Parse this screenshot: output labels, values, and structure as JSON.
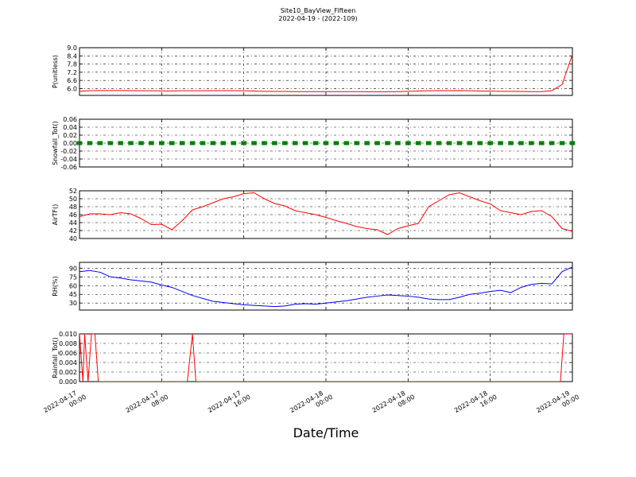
{
  "chart_data": {
    "title": "Site10_BayView_Fifteen",
    "subtitle": "2022-04-19 - (2022-109)",
    "xlabel": "Date/Time",
    "grid": true,
    "xlim": [
      "2022-04-17 00:00",
      "2022-04-19 00:00"
    ],
    "xticks": [
      "2022-04-17 00:00",
      "2022-04-17 08:00",
      "2022-04-17 16:00",
      "2022-04-18 00:00",
      "2022-04-18 08:00",
      "2022-04-18 16:00",
      "2022-04-19 00:00"
    ],
    "x": [
      "2022-04-17 00:00",
      "2022-04-17 01:00",
      "2022-04-17 02:00",
      "2022-04-17 03:00",
      "2022-04-17 04:00",
      "2022-04-17 05:00",
      "2022-04-17 06:00",
      "2022-04-17 07:00",
      "2022-04-17 08:00",
      "2022-04-17 09:00",
      "2022-04-17 10:00",
      "2022-04-17 11:00",
      "2022-04-17 12:00",
      "2022-04-17 13:00",
      "2022-04-17 14:00",
      "2022-04-17 15:00",
      "2022-04-17 16:00",
      "2022-04-17 17:00",
      "2022-04-17 18:00",
      "2022-04-17 19:00",
      "2022-04-17 20:00",
      "2022-04-17 21:00",
      "2022-04-17 22:00",
      "2022-04-17 23:00",
      "2022-04-18 00:00",
      "2022-04-18 01:00",
      "2022-04-18 02:00",
      "2022-04-18 03:00",
      "2022-04-18 04:00",
      "2022-04-18 05:00",
      "2022-04-18 06:00",
      "2022-04-18 07:00",
      "2022-04-18 08:00",
      "2022-04-18 09:00",
      "2022-04-18 10:00",
      "2022-04-18 11:00",
      "2022-04-18 12:00",
      "2022-04-18 13:00",
      "2022-04-18 14:00",
      "2022-04-18 15:00",
      "2022-04-18 16:00",
      "2022-04-18 17:00",
      "2022-04-18 18:00",
      "2022-04-18 19:00",
      "2022-04-18 20:00",
      "2022-04-18 21:00",
      "2022-04-18 22:00",
      "2022-04-18 23:00",
      "2022-04-19 00:00"
    ],
    "panels": [
      {
        "type": "line",
        "ylabel": "P(unitless)",
        "color": "#ff0000",
        "ylim": [
          5.5,
          9.0
        ],
        "yticks": [
          {
            "value": 6.0,
            "label": "6.0"
          },
          6.6,
          7.2,
          7.8,
          8.4,
          {
            "value": 9.0,
            "label": "9.0"
          }
        ],
        "values": [
          5.8,
          5.85,
          5.86,
          5.86,
          5.86,
          5.85,
          5.84,
          5.84,
          5.83,
          5.83,
          5.84,
          5.84,
          5.84,
          5.85,
          5.85,
          5.85,
          5.84,
          5.82,
          5.8,
          5.79,
          5.79,
          5.78,
          5.78,
          5.78,
          5.78,
          5.78,
          5.78,
          5.78,
          5.77,
          5.77,
          5.77,
          5.78,
          5.8,
          5.82,
          5.84,
          5.85,
          5.85,
          5.86,
          5.84,
          5.82,
          5.82,
          5.8,
          5.8,
          5.79,
          5.78,
          5.78,
          5.85,
          6.3,
          8.5
        ]
      },
      {
        "type": "scatter",
        "ylabel": "Snowfall_Tot()",
        "color": "#008000",
        "ylim": [
          -0.06,
          0.06
        ],
        "yticks": [
          -0.06,
          -0.04,
          -0.02,
          {
            "value": 0,
            "label": "0.00"
          },
          0.02,
          0.04,
          0.06
        ],
        "values": [
          0,
          0,
          0,
          0,
          0,
          0,
          0,
          0,
          0,
          0,
          0,
          0,
          0,
          0,
          0,
          0,
          0,
          0,
          0,
          0,
          0,
          0,
          0,
          0,
          0,
          0,
          0,
          0,
          0,
          0,
          0,
          0,
          0,
          0,
          0,
          0,
          0,
          0,
          0,
          0,
          0,
          0,
          0,
          0,
          0,
          0,
          0,
          0,
          0
        ]
      },
      {
        "type": "line",
        "ylabel": "AirTF()",
        "color": "#ff0000",
        "ylim": [
          40,
          52
        ],
        "yticks": [
          40,
          42,
          44,
          46,
          48,
          50,
          52
        ],
        "values": [
          45.5,
          46.2,
          46.2,
          46.0,
          46.5,
          46.2,
          45.0,
          43.5,
          43.6,
          42.2,
          44.5,
          47.2,
          48.0,
          49.0,
          50.0,
          50.5,
          51.3,
          51.5,
          50.0,
          48.8,
          48.2,
          47.0,
          46.5,
          46.0,
          45.3,
          44.5,
          43.8,
          43.0,
          42.5,
          42.2,
          41.0,
          42.5,
          43.2,
          43.8,
          48.0,
          49.5,
          51.0,
          51.5,
          50.5,
          49.5,
          48.7,
          47.0,
          46.5,
          46.0,
          46.8,
          47.0,
          45.5,
          42.5,
          41.8
        ]
      },
      {
        "type": "line",
        "ylabel": "RH(%)",
        "color": "#0000ff",
        "ylim": [
          18,
          100
        ],
        "yticks": [
          30,
          45,
          60,
          75,
          90
        ],
        "values": [
          84,
          86,
          83,
          75,
          73,
          70,
          68,
          66,
          61,
          57,
          50,
          43,
          38,
          33,
          31,
          29,
          27,
          26,
          25,
          24,
          25,
          28,
          29,
          28,
          30,
          32,
          34,
          37,
          40,
          42,
          44,
          43,
          42,
          40,
          37,
          36,
          36,
          40,
          45,
          47,
          50,
          52,
          48,
          57,
          62,
          64,
          63,
          84,
          92
        ]
      },
      {
        "type": "line",
        "ylabel": "Rainfall_Tot()",
        "color": "#ff0000",
        "ylim": [
          0,
          0.01
        ],
        "yticks": [
          {
            "value": 0,
            "label": "0.000"
          },
          0.002,
          0.004,
          0.006,
          0.008,
          {
            "value": 0.01,
            "label": "0.010"
          }
        ],
        "x": [
          "2022-04-17 00:00",
          "2022-04-17 00:20",
          "2022-04-17 00:30",
          "2022-04-17 00:50",
          "2022-04-17 01:10",
          "2022-04-17 01:30",
          "2022-04-17 01:50",
          "2022-04-17 10:30",
          "2022-04-17 11:00",
          "2022-04-17 11:20",
          "2022-04-18 22:50",
          "2022-04-18 23:10",
          "2022-04-19 00:00"
        ],
        "values": [
          0.01,
          0,
          0.01,
          0,
          0.01,
          0.01,
          0,
          0,
          0.01,
          0,
          0,
          0.01,
          0.01
        ]
      }
    ]
  }
}
